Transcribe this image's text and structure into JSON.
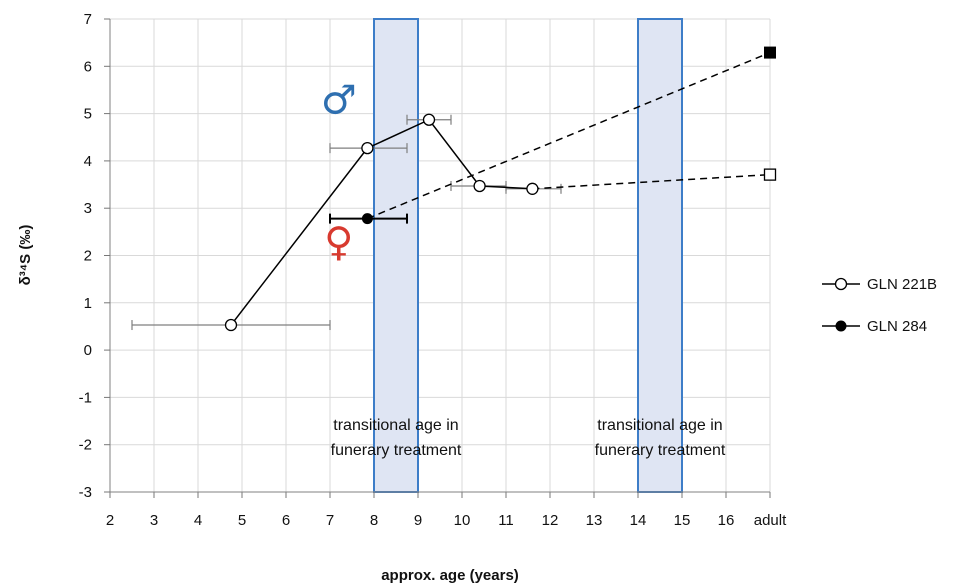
{
  "chart_data": {
    "type": "line",
    "xlabel": "approx. age (years)",
    "ylabel": "δ³⁴S (‰)",
    "x_ticks": [
      "2",
      "3",
      "4",
      "5",
      "6",
      "7",
      "8",
      "9",
      "10",
      "11",
      "12",
      "13",
      "14",
      "15",
      "16",
      "adult"
    ],
    "x_tick_values": [
      2,
      3,
      4,
      5,
      6,
      7,
      8,
      9,
      10,
      11,
      12,
      13,
      14,
      15,
      16,
      17
    ],
    "y_ticks": [
      "7",
      "6",
      "5",
      "4",
      "3",
      "2",
      "1",
      "0",
      "-1",
      "-2",
      "-3"
    ],
    "ylim": [
      -3,
      7
    ],
    "xlim": [
      2,
      17
    ],
    "grid": true,
    "legend_position": "right",
    "shaded_regions": [
      {
        "x_start": 8,
        "x_end": 9,
        "label_lines": [
          "transitional age in",
          "funerary treatment"
        ]
      },
      {
        "x_start": 14,
        "x_end": 15,
        "label_lines": [
          "transitional age in",
          "funerary treatment"
        ]
      }
    ],
    "series": [
      {
        "name": "GLN 221B",
        "marker": "open-circle",
        "points": [
          {
            "x": 4.75,
            "y": 0.53,
            "xerr": [
              2.5,
              7.0
            ]
          },
          {
            "x": 7.85,
            "y": 4.27,
            "xerr": [
              7.0,
              8.75
            ]
          },
          {
            "x": 9.25,
            "y": 4.87,
            "xerr": [
              8.75,
              9.75
            ]
          },
          {
            "x": 10.4,
            "y": 3.47,
            "xerr": [
              9.75,
              11.0
            ]
          },
          {
            "x": 11.6,
            "y": 3.41,
            "xerr": [
              11.0,
              12.25
            ]
          }
        ],
        "projection": {
          "from": {
            "x": 11.6,
            "y": 3.41
          },
          "to": {
            "x": 17,
            "y": 3.71
          },
          "marker": "open-square"
        }
      },
      {
        "name": "GLN 284",
        "marker": "filled-circle",
        "points": [
          {
            "x": 7.85,
            "y": 2.78,
            "xerr": [
              7.0,
              8.75
            ]
          }
        ],
        "projection": {
          "from": {
            "x": 7.85,
            "y": 2.78
          },
          "to": {
            "x": 17,
            "y": 6.29
          },
          "marker": "filled-square"
        }
      }
    ],
    "annotations": [
      {
        "symbol": "♂",
        "color": "#2e6fb0",
        "at_x": 7.2,
        "at_y": 5.0
      },
      {
        "symbol": "♀",
        "color": "#d83a2f",
        "at_x": 7.2,
        "at_y": 2.0
      }
    ]
  }
}
